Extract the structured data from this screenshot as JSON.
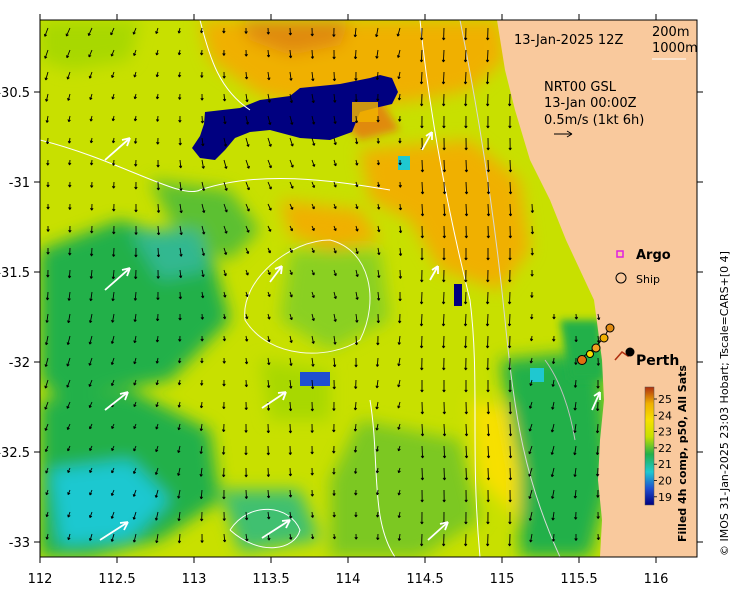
{
  "map": {
    "date_label": "13-Jan-2025 12Z",
    "contour_legend": [
      "200m",
      "1000m"
    ],
    "current_info": [
      "NRT00 GSL",
      "13-Jan 00:00Z",
      "0.5m/s (1kt 6h)"
    ],
    "legend_argo": "Argo",
    "legend_ship": "Ship",
    "city": "Perth",
    "colorbar_title": "Filled 4h comp, p50, All Sats",
    "credit": "© IMOS 31-Jan-2025 23:03 Hobart; Tscale=CARS+[0 4]",
    "x_ticks": [
      "112",
      "112.5",
      "113",
      "113.5",
      "114",
      "114.5",
      "115",
      "115.5",
      "116"
    ],
    "y_ticks": [
      "-30.5",
      "-31",
      "-31.5",
      "-32",
      "-32.5",
      "-33"
    ],
    "colorbar_ticks": [
      "25",
      "24",
      "23",
      "22",
      "21",
      "20",
      "19"
    ],
    "colors": {
      "land": "#f9c99d",
      "sst_19": "#000080",
      "sst_20": "#1f4fd0",
      "sst_21": "#1fc8d0",
      "sst_22": "#22b04a",
      "sst_23": "#c8e000",
      "sst_24": "#f0b000",
      "sst_25": "#b03010"
    }
  }
}
